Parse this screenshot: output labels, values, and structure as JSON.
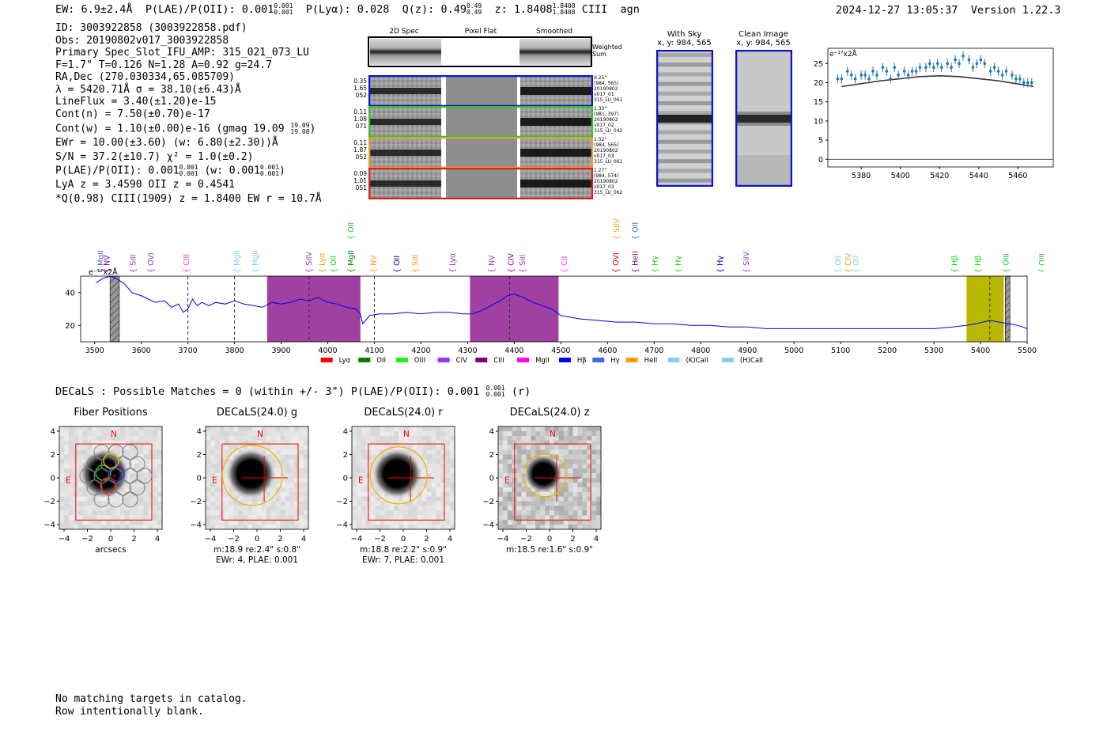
{
  "header": {
    "ew": "EW: 6.9±2.4Å",
    "plae_label": "P(LAE)/P(OII): 0.001",
    "plae_hi": "0.001",
    "plae_lo": "0.001",
    "plya": "P(Lyα): 0.028",
    "qz": "Q(z): 0.49",
    "qz_hi": "0.49",
    "qz_lo": "0.49",
    "z": "z: 1.8408",
    "z_hi": "1.8408",
    "z_lo": "1.8408",
    "line": "CIII",
    "cls": "agn",
    "timestamp": "2024-12-27 13:05:37",
    "version": "Version 1.22.3"
  },
  "info": {
    "id": "ID: 3003922858 (3003922858.pdf)",
    "obs": "Obs: 20190802v017_3003922858",
    "primary": "Primary Spec_Slot_IFU_AMP: 315_021_073_LU",
    "fparams": "F=1.7\"  T=0.126  N=1.28  A=0.92  g=24.7",
    "radec": "RA,Dec (270.030334,65.085709)",
    "lambda": "λ = 5420.71Å  σ = 38.10(±6.43)Å",
    "lineflux": "LineFlux = 3.40(±1.20)e-15",
    "contn": "Cont(n) = 7.50(±0.70)e-17",
    "contw": "Cont(w) = 1.10(±0.00)e-16 (gmag 19.09",
    "gmag_hi": "19.09",
    "gmag_lo": "19.08",
    "ewr": "EWr = 10.00(±3.60) (w: 6.80(±2.30))Å",
    "sn": "S/N = 37.2(±10.7)  χ² = 1.0(±0.2)",
    "plae": "P(LAE)/P(OII): 0.001",
    "plae_hi": "0.001",
    "plae_lo": "0.001",
    "plae_w": "(w: 0.001",
    "plae_w_hi": "0.001",
    "plae_w_lo": "0.001",
    "lya": "LyA z = 3.4590  OII z = 0.4541",
    "q": "*Q(0.98) CIII(1909) z = 1.8400  EW r = 10.7Å"
  },
  "cutouts": {
    "col_titles": [
      "2D Spec",
      "Pixel Flat",
      "Smoothed"
    ],
    "weighted_sum": [
      "Weighted",
      "Sum"
    ],
    "rows": [
      {
        "left": [
          "0.35",
          "1.65",
          "052"
        ],
        "right": [
          "0.25\"",
          "(984, 565)",
          "20190802",
          "v017_01",
          "315_LU_061"
        ],
        "color": "#1010e0"
      },
      {
        "left": [
          "0.11",
          "1.08",
          "071"
        ],
        "right": [
          "1.33\"",
          "(981, 397)",
          "20190802",
          "v017_02",
          "315_LU_042"
        ],
        "color": "#22cc22"
      },
      {
        "left": [
          "0.11",
          "1.87",
          "052"
        ],
        "right": [
          "1.52\"",
          "(984, 565)",
          "20190802",
          "v017_03",
          "315_LU_061"
        ],
        "color": "#f0a020"
      },
      {
        "left": [
          "0.09",
          "1.01",
          "051"
        ],
        "right": [
          "1.27\"",
          "(984, 574)",
          "20190802",
          "v017_03",
          "315_LU_062"
        ],
        "color": "#e02020"
      }
    ],
    "with_sky_title": [
      "With Sky",
      "x, y: 984, 565"
    ],
    "clean_title": [
      "Clean Image",
      "x, y: 984, 565"
    ]
  },
  "spectrum_line_labels": [
    {
      "t": "MgII",
      "w": 3513,
      "c": "#4169e1"
    },
    {
      "t": "NV",
      "w": 3527,
      "c": "#800080"
    },
    {
      "t": "SiII",
      "w": 3583,
      "c": "#9933cc"
    },
    {
      "t": "OVI",
      "w": 3621,
      "c": "#9933cc"
    },
    {
      "t": "CIII",
      "w": 3697,
      "c": "#ff33ff"
    },
    {
      "t": "MgII",
      "w": 3806,
      "c": "#87ceeb"
    },
    {
      "t": "MgII",
      "w": 3845,
      "c": "#87ceeb"
    },
    {
      "t": "SiIV",
      "w": 3960,
      "c": "#9933cc"
    },
    {
      "t": "Lyα",
      "w": 3988,
      "c": "#ff9900"
    },
    {
      "t": "OII",
      "w": 4013,
      "c": "#22cc22"
    },
    {
      "t": "MgII",
      "w": 4050,
      "c": "#008800"
    },
    {
      "t": "NV",
      "w": 4098,
      "c": "#ff9900"
    },
    {
      "t": "OII",
      "w": 4148,
      "c": "#0000cc"
    },
    {
      "t": "SiII",
      "w": 4188,
      "c": "#ff9900"
    },
    {
      "t": "Lyα",
      "w": 4268,
      "c": "#9933cc"
    },
    {
      "t": "NV",
      "w": 4352,
      "c": "#9933cc"
    },
    {
      "t": "CIV",
      "w": 4393,
      "c": "#800080"
    },
    {
      "t": "SiII",
      "w": 4418,
      "c": "#9933cc"
    },
    {
      "t": "CII",
      "w": 4508,
      "c": "#ff33ff"
    },
    {
      "t": "OVI",
      "w": 4618,
      "c": "#cc0000"
    },
    {
      "t": "HeII",
      "w": 4660,
      "c": "#800080"
    },
    {
      "t": "Hγ",
      "w": 4702,
      "c": "#22cc22"
    },
    {
      "t": "Hγ",
      "w": 4752,
      "c": "#22cc22"
    },
    {
      "t": "Hγ",
      "w": 4842,
      "c": "#0000cc"
    },
    {
      "t": "SiIV",
      "w": 4898,
      "c": "#9933cc"
    },
    {
      "t": "OII",
      "w": 5095,
      "c": "#87ceeb"
    },
    {
      "t": "CIV",
      "w": 5117,
      "c": "#ff9900"
    },
    {
      "t": "OII",
      "w": 5133,
      "c": "#87ceeb"
    },
    {
      "t": "Hβ",
      "w": 5345,
      "c": "#22cc22"
    },
    {
      "t": "Hβ",
      "w": 5395,
      "c": "#22cc22"
    },
    {
      "t": "OIII",
      "w": 5455,
      "c": "#22cc22"
    },
    {
      "t": "OIII",
      "w": 5532,
      "c": "#22cc22"
    }
  ],
  "spectrum_upper_labels": [
    {
      "t": "OII",
      "w": 4050,
      "c": "#22cc22"
    },
    {
      "t": "SiIV",
      "w": 4620,
      "c": "#ff9900"
    },
    {
      "t": "OII",
      "w": 4660,
      "c": "#4169e1"
    }
  ],
  "legend": [
    {
      "t": "Lyα",
      "c": "#ff0000"
    },
    {
      "t": "OII",
      "c": "#008000"
    },
    {
      "t": "OIII",
      "c": "#22ee22"
    },
    {
      "t": "CIV",
      "c": "#9933ff"
    },
    {
      "t": "CIII",
      "c": "#800080"
    },
    {
      "t": "MgII",
      "c": "#ff00ff"
    },
    {
      "t": "Hβ",
      "c": "#0000ff"
    },
    {
      "t": "Hγ",
      "c": "#4169e1"
    },
    {
      "t": "HeII",
      "c": "#ff9900"
    },
    {
      "t": "(K)CaII",
      "c": "#87ceeb"
    },
    {
      "t": "(H)CaII",
      "c": "#87ceeb"
    }
  ],
  "chart_data": [
    {
      "type": "line",
      "title": "",
      "ylabel": "e⁻¹⁷x2Å",
      "xlim": [
        3470,
        5500
      ],
      "ylim": [
        10,
        50
      ],
      "xticks": [
        3500,
        3600,
        3700,
        3800,
        3900,
        4000,
        4100,
        4200,
        4300,
        4400,
        4500,
        4600,
        4700,
        4800,
        4900,
        5000,
        5100,
        5200,
        5300,
        5400,
        5500
      ],
      "yticks": [
        20,
        40
      ],
      "x": [
        3503,
        3520,
        3535,
        3550,
        3555,
        3565,
        3580,
        3600,
        3615,
        3630,
        3650,
        3665,
        3680,
        3690,
        3700,
        3710,
        3720,
        3730,
        3745,
        3760,
        3780,
        3800,
        3820,
        3840,
        3860,
        3880,
        3900,
        3920,
        3940,
        3960,
        3980,
        4000,
        4020,
        4040,
        4060,
        4070,
        4075,
        4090,
        4110,
        4140,
        4170,
        4200,
        4230,
        4260,
        4290,
        4310,
        4330,
        4350,
        4370,
        4385,
        4400,
        4420,
        4440,
        4460,
        4480,
        4500,
        4540,
        4580,
        4620,
        4660,
        4700,
        4740,
        4780,
        4820,
        4860,
        4900,
        4940,
        4980,
        5020,
        5060,
        5100,
        5140,
        5180,
        5220,
        5260,
        5300,
        5340,
        5370,
        5390,
        5405,
        5420,
        5440,
        5460,
        5480,
        5500
      ],
      "y": [
        46,
        49,
        50,
        48,
        47,
        45,
        40,
        38,
        36,
        34,
        35,
        31,
        33,
        28,
        30,
        36,
        32,
        34,
        32,
        34,
        33,
        35,
        33,
        32,
        31,
        34,
        33,
        34,
        36,
        35,
        37,
        34,
        33,
        31,
        30,
        27,
        21,
        26,
        27,
        27,
        28,
        27,
        28,
        28,
        27,
        27,
        29,
        32,
        35,
        38,
        39,
        37,
        34,
        32,
        30,
        26,
        24,
        23,
        22,
        22,
        21,
        21,
        20,
        20,
        19,
        19,
        18,
        18,
        18,
        18,
        18,
        18,
        18,
        18,
        18,
        18,
        19,
        20,
        21,
        22,
        23,
        22,
        21,
        20,
        18
      ],
      "shaded_regions": [
        {
          "x0": 3870,
          "x1": 4070,
          "color": "#a040a0"
        },
        {
          "x0": 4305,
          "x1": 4495,
          "color": "#a040a0"
        },
        {
          "x0": 5370,
          "x1": 5450,
          "color": "#b8b800"
        }
      ],
      "dashed_lines": [
        3700,
        3800,
        3960,
        4100,
        4390,
        5420
      ],
      "hatched_regions": [
        {
          "x0": 3533,
          "x1": 3553
        },
        {
          "x0": 5453,
          "x1": 5463
        }
      ]
    },
    {
      "type": "scatter",
      "ylabel": "e⁻¹⁷x2Å",
      "xlim": [
        5363,
        5478
      ],
      "ylim": [
        -2,
        29
      ],
      "xticks": [
        5380,
        5400,
        5420,
        5440,
        5460
      ],
      "yticks": [
        0,
        5,
        10,
        15,
        20,
        25
      ],
      "x": [
        5368,
        5370,
        5373,
        5375,
        5377,
        5380,
        5382,
        5384,
        5386,
        5388,
        5391,
        5393,
        5395,
        5397,
        5399,
        5402,
        5404,
        5406,
        5408,
        5410,
        5413,
        5415,
        5417,
        5419,
        5421,
        5424,
        5426,
        5428,
        5430,
        5432,
        5435,
        5437,
        5439,
        5441,
        5443,
        5446,
        5448,
        5450,
        5452,
        5454,
        5457,
        5459,
        5461,
        5463,
        5465,
        5467
      ],
      "y": [
        21,
        21,
        23,
        22,
        21,
        22,
        22,
        21,
        23,
        22,
        24,
        23,
        21,
        24,
        22,
        23,
        22,
        23,
        23,
        24,
        24,
        25,
        24,
        25,
        24,
        25,
        24,
        26,
        25,
        27,
        26,
        24,
        25,
        26,
        25,
        23,
        24,
        23,
        22,
        23,
        22,
        21,
        21,
        20,
        20,
        20
      ],
      "model": {
        "x": [
          5370,
          5390,
          5410,
          5420,
          5430,
          5450,
          5468
        ],
        "y": [
          19,
          20.5,
          21.6,
          21.8,
          21.6,
          20.5,
          19
        ]
      },
      "zero_line": 0
    }
  ],
  "decals": {
    "header": "DECaLS : Possible Matches = 0 (within +/- 3\")  P(LAE)/P(OII): 0.001",
    "header_hi": "0.001",
    "header_lo": "0.001",
    "header_tail": "(r)",
    "panels": [
      {
        "title": "Fiber Positions",
        "cap1": "arcsecs",
        "cap2": ""
      },
      {
        "title": "DECaLS(24.0) g",
        "cap1": "m:18.9  re:2.4\"  s:0.8\"",
        "cap2": "EWr: 4, PLAE: 0.001"
      },
      {
        "title": "DECaLS(24.0) r",
        "cap1": "m:18.8  re:2.2\"  s:0.9\"",
        "cap2": "EWr: 7, PLAE: 0.001"
      },
      {
        "title": "DECaLS(24.0) z",
        "cap1": "m:18.5  re:1.6\"  s:0.9\"",
        "cap2": ""
      }
    ],
    "axis_ticks": [
      "4",
      "2",
      "0",
      "−2",
      "−4"
    ],
    "x_ticks": [
      "−4",
      "−2",
      "0",
      "2",
      "4"
    ],
    "north": "N",
    "east": "E"
  },
  "footer": {
    "line1": "No matching targets in catalog.",
    "line2": "Row intentionally blank."
  }
}
